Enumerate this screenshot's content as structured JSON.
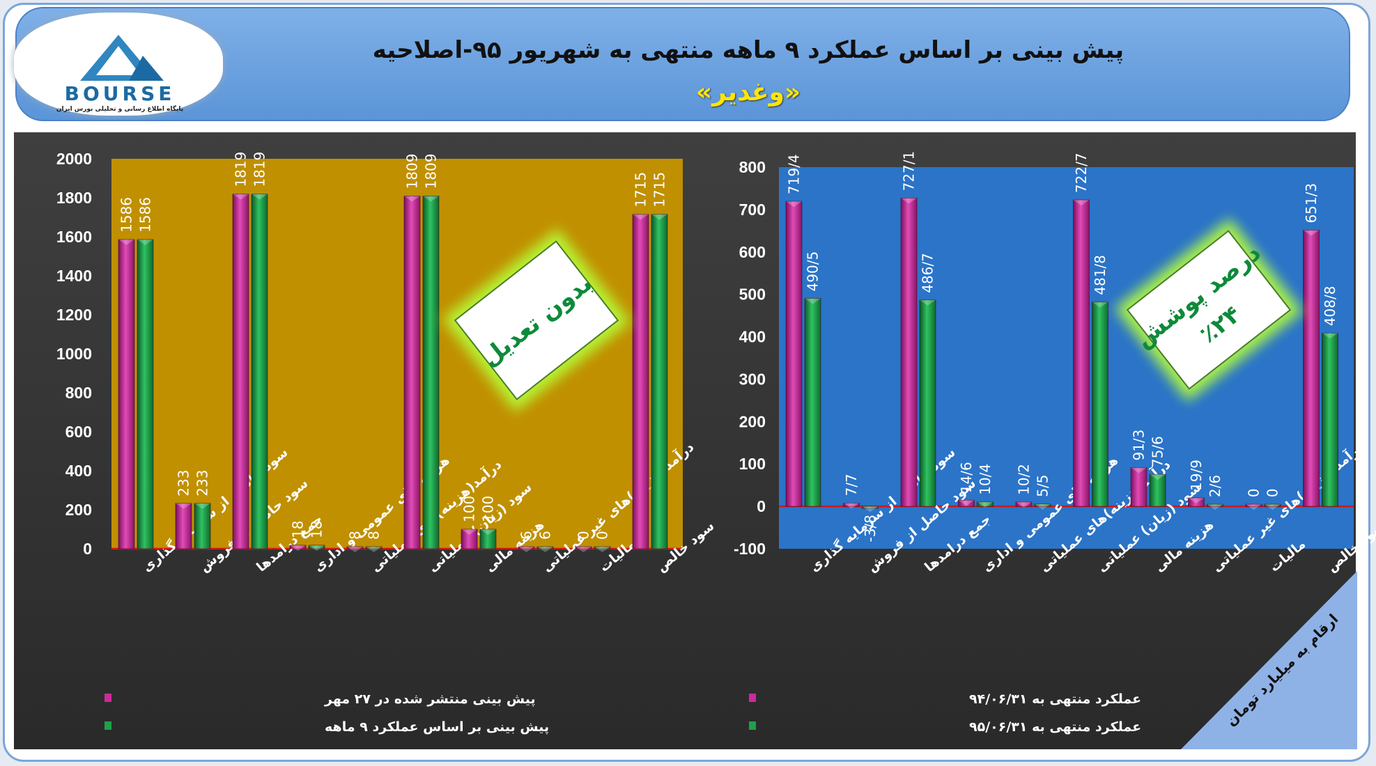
{
  "header": {
    "title_line1": "پیش بینی بر اساس عملکرد ۹ ماهه منتهی به شهریور ۹۵-اصلاحیه",
    "title_line2": "«وغدیر»"
  },
  "logo": {
    "word": "BOURSE",
    "tagline": "پایگاه اطلاع رسانی و تحلیلی بورس ایران"
  },
  "note_corner": "ارقام به میلیارد تومان",
  "chart_data": [
    {
      "type": "bar",
      "categories": [
        "سود حاصل از سرمایه گذاری",
        "سود حاصل از فروش",
        "جمع درامدها",
        "هزینه های عمومی و اداری",
        "درآمد(هزینه)های عملیاتی",
        "سود (زیان) عملیاتی",
        "هزینه مالی",
        "درآمد(هزینه)های غیر عملیاتی",
        "مالیات",
        "سود خالص"
      ],
      "series": [
        {
          "name": "پیش بینی منتشر شده در ۲۷ مهر",
          "color": "#cc2a9a",
          "values": [
            1586,
            233,
            1819,
            18,
            8,
            1809,
            100,
            6,
            0,
            1715
          ],
          "labels": [
            "1586",
            "233",
            "1819",
            "18",
            "8",
            "1809",
            "100",
            "6",
            "0",
            "1715"
          ]
        },
        {
          "name": "پیش بینی بر اساس عملکرد ۹ ماهه",
          "color": "#1fa04a",
          "values": [
            1586,
            233,
            1819,
            18,
            8,
            1809,
            100,
            6,
            0,
            1715
          ],
          "labels": [
            "1586",
            "233",
            "1819",
            "18",
            "8",
            "1809",
            "100",
            "6",
            "0",
            "1715"
          ]
        }
      ],
      "yticks": [
        "0",
        "200",
        "400",
        "600",
        "800",
        "1000",
        "1200",
        "1400",
        "1600",
        "1800",
        "2000"
      ],
      "ylim": [
        0,
        2000
      ],
      "plot_bg": "#c09000",
      "stamp": [
        "بدون تعدیل"
      ],
      "legend_position": "bottom-left"
    },
    {
      "type": "bar",
      "categories": [
        "سود حاصل از سرمایه گذاری",
        "سود حاصل از فروش",
        "جمع درامدها",
        "هزینه های عمومی و اداری",
        "درآمد(هزینه)های عملیاتی",
        "سود (زیان) عملیاتی",
        "هزینه مالی",
        "درآمد(هزینه)های غیر عملیاتی",
        "مالیات",
        "سود خالص"
      ],
      "series": [
        {
          "name": "عملکرد منتهی به ۹۴/۰۶/۳۱",
          "color": "#cc2a9a",
          "values": [
            719.4,
            7.7,
            727.1,
            14.6,
            10.2,
            722.7,
            91.3,
            19.9,
            0,
            651.3
          ],
          "labels": [
            "719/4",
            "7/7",
            "727/1",
            "14/6",
            "10/2",
            "722/7",
            "91/3",
            "19/9",
            "0",
            "651/3"
          ]
        },
        {
          "name": "عملکرد منتهی به ۹۵/۰۶/۳۱",
          "color": "#1fa04a",
          "values": [
            490.5,
            -3.8,
            486.7,
            10.4,
            5.5,
            481.8,
            75.6,
            2.6,
            0,
            408.8
          ],
          "labels": [
            "490/5",
            "-3/8",
            "486/7",
            "10/4",
            "5/5",
            "481/8",
            "75/6",
            "2/6",
            "0",
            "408/8"
          ]
        }
      ],
      "yticks": [
        "-100",
        "0",
        "100",
        "200",
        "300",
        "400",
        "500",
        "600",
        "700",
        "800"
      ],
      "ylim": [
        -100,
        800
      ],
      "plot_bg": "#2b74c8",
      "stamp": [
        "درصد پوشش",
        "٪۲۴"
      ],
      "legend_position": "bottom-left"
    }
  ]
}
